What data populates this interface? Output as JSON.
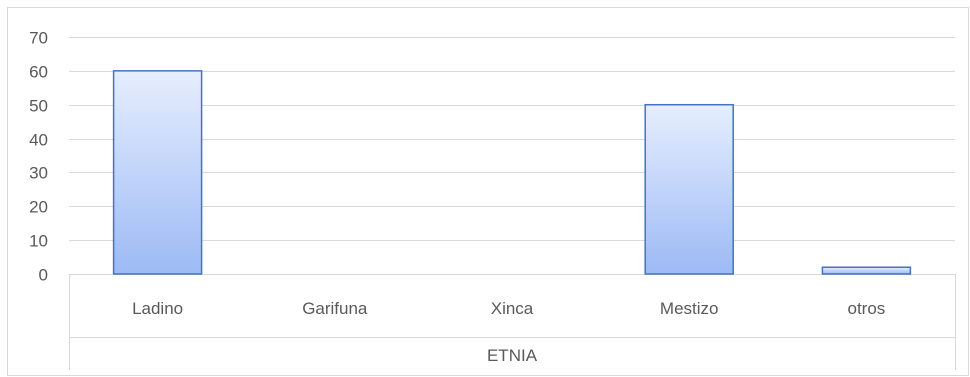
{
  "chart_data": {
    "type": "bar",
    "categories": [
      "Ladino",
      "Garifuna",
      "Xinca",
      "Mestizo",
      "otros"
    ],
    "values": [
      60,
      0,
      0,
      50,
      2
    ],
    "xlabel": "ETNIA",
    "ylabel": "",
    "ylim": [
      0,
      70
    ],
    "yticks": [
      0,
      10,
      20,
      30,
      40,
      50,
      60,
      70
    ],
    "grid": true,
    "legend": "none"
  },
  "colors": {
    "bar_top": "#e6eefe",
    "bar_bottom": "#9dbaf5",
    "bar_stroke": "#4472c4",
    "grid": "#d9d9d9",
    "text": "#595959"
  }
}
